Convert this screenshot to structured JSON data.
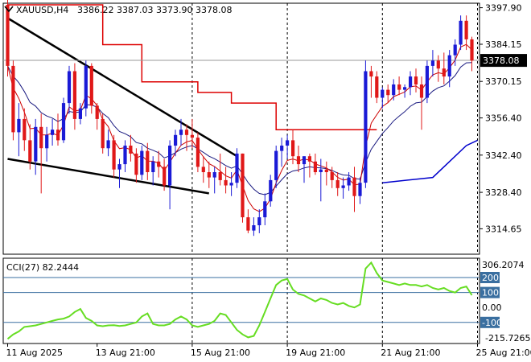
{
  "chart_data": [
    {
      "type": "candlestick",
      "symbol": "XAUUSD",
      "timeframe": "H4",
      "header": {
        "symbol_tf": "XAUUSD,H4",
        "ohlc": "3386.22 3387.03 3373.90 3378.08"
      },
      "ylim": [
        3306,
        3399
      ],
      "y_ticks": [
        "3397.90",
        "3384.15",
        "3370.15",
        "3356.40",
        "3342.40",
        "3328.40",
        "3314.65"
      ],
      "current_price": "3378.08",
      "current_price_value": 3378.08,
      "x_labels": [
        "11 Aug 2025",
        "13 Aug 21:00",
        "15 Aug 21:00",
        "19 Aug 21:00",
        "21 Aug 21:00",
        "25 Aug 21:00"
      ],
      "x_label_bars": [
        0,
        16,
        33,
        50,
        67,
        84
      ],
      "session_separator_bars": [
        33.5,
        50.5,
        67.5,
        84.5
      ],
      "candles": [
        [
          3399,
          3401,
          3372,
          3376
        ],
        [
          3376,
          3378,
          3348,
          3351
        ],
        [
          3351,
          3362,
          3342,
          3356
        ],
        [
          3356,
          3360,
          3344,
          3348
        ],
        [
          3348,
          3354,
          3337,
          3340
        ],
        [
          3340,
          3356,
          3335,
          3353
        ],
        [
          3353,
          3358,
          3328,
          3345
        ],
        [
          3345,
          3353,
          3340,
          3350
        ],
        [
          3350,
          3356,
          3346,
          3352
        ],
        [
          3352,
          3358,
          3346,
          3348
        ],
        [
          3348,
          3364,
          3347,
          3362
        ],
        [
          3362,
          3376,
          3358,
          3374
        ],
        [
          3374,
          3377,
          3352,
          3356
        ],
        [
          3356,
          3362,
          3354,
          3360
        ],
        [
          3360,
          3378,
          3357,
          3376
        ],
        [
          3376,
          3377,
          3358,
          3361
        ],
        [
          3361,
          3362,
          3352,
          3356
        ],
        [
          3356,
          3358,
          3343,
          3345
        ],
        [
          3345,
          3352,
          3342,
          3348
        ],
        [
          3348,
          3350,
          3334,
          3337
        ],
        [
          3337,
          3341,
          3330,
          3339
        ],
        [
          3339,
          3348,
          3336,
          3346
        ],
        [
          3346,
          3350,
          3340,
          3343
        ],
        [
          3343,
          3345,
          3332,
          3335
        ],
        [
          3335,
          3346,
          3333,
          3344
        ],
        [
          3344,
          3347,
          3333,
          3336
        ],
        [
          3336,
          3342,
          3331,
          3340
        ],
        [
          3340,
          3344,
          3334,
          3338
        ],
        [
          3338,
          3341,
          3329,
          3331
        ],
        [
          3331,
          3348,
          3322,
          3346
        ],
        [
          3346,
          3352,
          3342,
          3350
        ],
        [
          3350,
          3356,
          3346,
          3352
        ],
        [
          3352,
          3354,
          3344,
          3350
        ],
        [
          3350,
          3356,
          3345,
          3349
        ],
        [
          3349,
          3351,
          3336,
          3338
        ],
        [
          3338,
          3342,
          3332,
          3336
        ],
        [
          3336,
          3340,
          3330,
          3334
        ],
        [
          3334,
          3338,
          3328,
          3336
        ],
        [
          3336,
          3343,
          3331,
          3333
        ],
        [
          3333,
          3338,
          3328,
          3331
        ],
        [
          3331,
          3336,
          3327,
          3332
        ],
        [
          3332,
          3345,
          3330,
          3343
        ],
        [
          3343,
          3343,
          3317,
          3319
        ],
        [
          3319,
          3322,
          3313,
          3314
        ],
        [
          3314,
          3319,
          3312,
          3316
        ],
        [
          3316,
          3322,
          3313,
          3319
        ],
        [
          3319,
          3328,
          3316,
          3325
        ],
        [
          3325,
          3335,
          3323,
          3333
        ],
        [
          3333,
          3346,
          3330,
          3344
        ],
        [
          3344,
          3349,
          3338,
          3346
        ],
        [
          3346,
          3350,
          3341,
          3348
        ],
        [
          3348,
          3352,
          3339,
          3342
        ],
        [
          3342,
          3346,
          3336,
          3339
        ],
        [
          3339,
          3342,
          3332,
          3342
        ],
        [
          3342,
          3343,
          3334,
          3340
        ],
        [
          3340,
          3343,
          3335,
          3336
        ],
        [
          3336,
          3341,
          3325,
          3337
        ],
        [
          3337,
          3340,
          3331,
          3336
        ],
        [
          3336,
          3338,
          3330,
          3333
        ],
        [
          3333,
          3336,
          3327,
          3330
        ],
        [
          3330,
          3334,
          3326,
          3331
        ],
        [
          3331,
          3336,
          3329,
          3334
        ],
        [
          3334,
          3338,
          3321,
          3327
        ],
        [
          3327,
          3334,
          3324,
          3332
        ],
        [
          3332,
          3378,
          3330,
          3374
        ],
        [
          3374,
          3376,
          3364,
          3372
        ],
        [
          3372,
          3374,
          3362,
          3364
        ],
        [
          3364,
          3368,
          3360,
          3367
        ],
        [
          3367,
          3369,
          3362,
          3365
        ],
        [
          3365,
          3371,
          3363,
          3369
        ],
        [
          3369,
          3372,
          3365,
          3367
        ],
        [
          3367,
          3369,
          3364,
          3368
        ],
        [
          3368,
          3374,
          3365,
          3372
        ],
        [
          3372,
          3375,
          3366,
          3369
        ],
        [
          3369,
          3372,
          3352,
          3364
        ],
        [
          3364,
          3378,
          3362,
          3376
        ],
        [
          3376,
          3382,
          3372,
          3378
        ],
        [
          3378,
          3380,
          3370,
          3375
        ],
        [
          3375,
          3381,
          3369,
          3372
        ],
        [
          3372,
          3382,
          3368,
          3380
        ],
        [
          3380,
          3386,
          3376,
          3384
        ],
        [
          3384,
          3395,
          3382,
          3393
        ],
        [
          3393,
          3395,
          3382,
          3386
        ],
        [
          3386,
          3387,
          3374,
          3378
        ]
      ],
      "cci": {
        "label": "CCI(27) 82.2444",
        "ylim": [
          -230,
          318
        ],
        "levels": [
          {
            "value": 200,
            "label": "200"
          },
          {
            "value": 100,
            "label": "100"
          },
          {
            "value": 0,
            "label": "0.00"
          },
          {
            "value": -100,
            "label": "-100"
          }
        ],
        "top_label": "306.2074",
        "bottom_label": "-215.7265",
        "values": [
          -210,
          -180,
          -160,
          -130,
          -125,
          -120,
          -110,
          -100,
          -90,
          -80,
          -75,
          -60,
          -30,
          -10,
          -70,
          -90,
          -120,
          -125,
          -120,
          -118,
          -124,
          -120,
          -110,
          -100,
          -60,
          -40,
          -110,
          -120,
          -120,
          -110,
          -80,
          -60,
          -80,
          -120,
          -130,
          -120,
          -110,
          -90,
          -40,
          -50,
          -100,
          -150,
          -180,
          -200,
          -190,
          -120,
          -30,
          60,
          150,
          180,
          190,
          120,
          90,
          80,
          60,
          40,
          60,
          50,
          30,
          20,
          30,
          10,
          0,
          20,
          260,
          300,
          230,
          180,
          170,
          160,
          150,
          160,
          150,
          150,
          140,
          150,
          130,
          120,
          130,
          110,
          100,
          130,
          140,
          82
        ]
      }
    }
  ]
}
